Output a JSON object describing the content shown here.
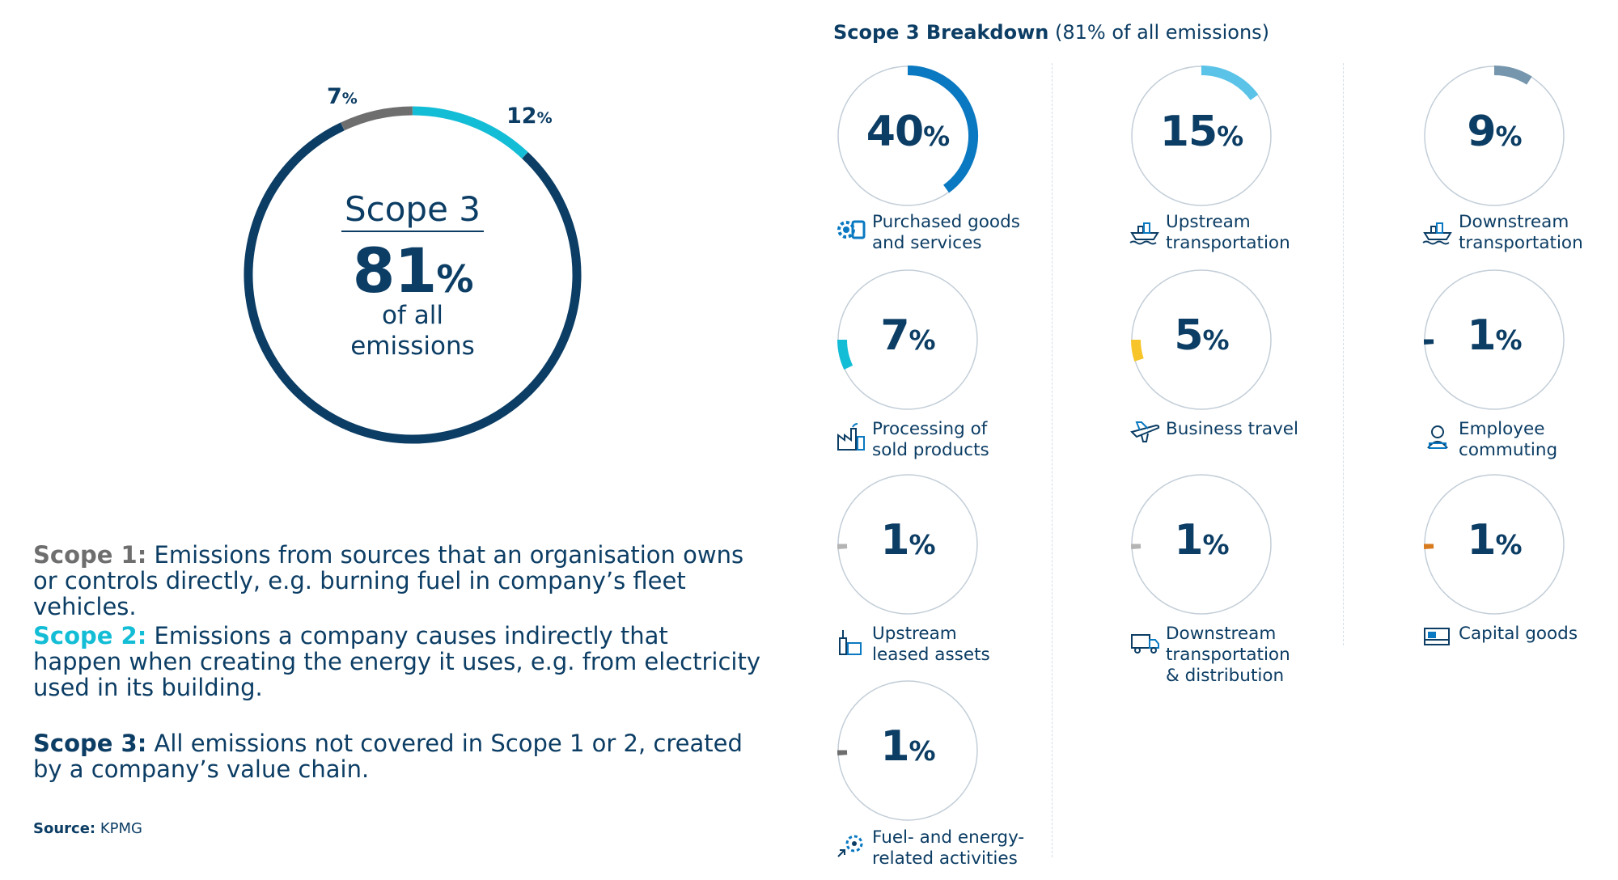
{
  "scope_summary": {
    "center_title": "Scope 3",
    "center_value": "81",
    "center_unit": "%",
    "center_sub1": "of all",
    "center_sub2": "emissions",
    "segments": [
      {
        "name": "Scope 1",
        "value": 7,
        "color": "#6e6e6e"
      },
      {
        "name": "Scope 2",
        "value": 12,
        "color": "#14bdd6"
      },
      {
        "name": "Scope 3",
        "value": 81,
        "color": "#0c3d64"
      }
    ]
  },
  "definitions": [
    {
      "key": "Scope 1:",
      "text": "Emissions from sources that an organisation owns or controls directly, e.g. burning fuel in company’s fleet vehicles.",
      "color": "#6e6e6e"
    },
    {
      "key": "Scope 2:",
      "text": "Emissions a company causes indirectly that happen when creating the energy it uses, e.g. from electricity used in its building.",
      "color": "#14bdd6"
    },
    {
      "key": "Scope 3:",
      "text": "All emissions not covered in Scope 1 or 2, created by a company’s value chain.",
      "color": "#0c3d64"
    }
  ],
  "source": {
    "label": "Source:",
    "value": "KPMG"
  },
  "breakdown": {
    "title_bold": "Scope 3 Breakdown",
    "title_rest": "(81% of all emissions)",
    "items": [
      {
        "value": 40,
        "label_lines": [
          "Purchased goods",
          "and services"
        ],
        "color": "#0a79c1",
        "icon": "gear-box-icon"
      },
      {
        "value": 15,
        "label_lines": [
          "Upstream",
          "transportation"
        ],
        "color": "#5bc3e8",
        "icon": "ship-icon"
      },
      {
        "value": 9,
        "label_lines": [
          "Downstream",
          "transportation"
        ],
        "color": "#7596ac",
        "icon": "ship-icon"
      },
      {
        "value": 7,
        "label_lines": [
          "Processing of",
          "sold products"
        ],
        "color": "#14bdd6",
        "icon": "factory-icon"
      },
      {
        "value": 5,
        "label_lines": [
          "Business travel"
        ],
        "color": "#f7c52a",
        "icon": "airplane-icon"
      },
      {
        "value": 1,
        "label_lines": [
          "Employee",
          "commuting"
        ],
        "color": "#0c3d64",
        "icon": "commuter-icon"
      },
      {
        "value": 1,
        "label_lines": [
          "Upstream",
          "leased assets"
        ],
        "color": "#b4b4b4",
        "icon": "leased-assets-icon"
      },
      {
        "value": 1,
        "label_lines": [
          "Downstream",
          "transportation",
          "& distribution"
        ],
        "color": "#b4b4b4",
        "icon": "truck-icon"
      },
      {
        "value": 1,
        "label_lines": [
          "Capital goods"
        ],
        "color": "#d87a1e",
        "icon": "capital-goods-icon"
      },
      {
        "value": 1,
        "label_lines": [
          "Fuel- and energy-",
          "related activities"
        ],
        "color": "#6e6e6e",
        "icon": "fuel-energy-icon"
      }
    ]
  },
  "chart_data": [
    {
      "type": "pie",
      "categories": [
        "Scope 1",
        "Scope 2",
        "Scope 3"
      ],
      "values": [
        7,
        12,
        81
      ],
      "title": "",
      "unit": "%"
    },
    {
      "type": "pie",
      "title": "Scope 3 Breakdown (81% of all emissions)",
      "categories": [
        "Purchased goods and services",
        "Upstream transportation",
        "Downstream transportation",
        "Processing of sold products",
        "Business travel",
        "Employee commuting",
        "Upstream leased assets",
        "Downstream transportation & distribution",
        "Capital goods",
        "Fuel- and energy-related activities"
      ],
      "values": [
        40,
        15,
        9,
        7,
        5,
        1,
        1,
        1,
        1,
        1
      ],
      "unit": "%"
    }
  ]
}
